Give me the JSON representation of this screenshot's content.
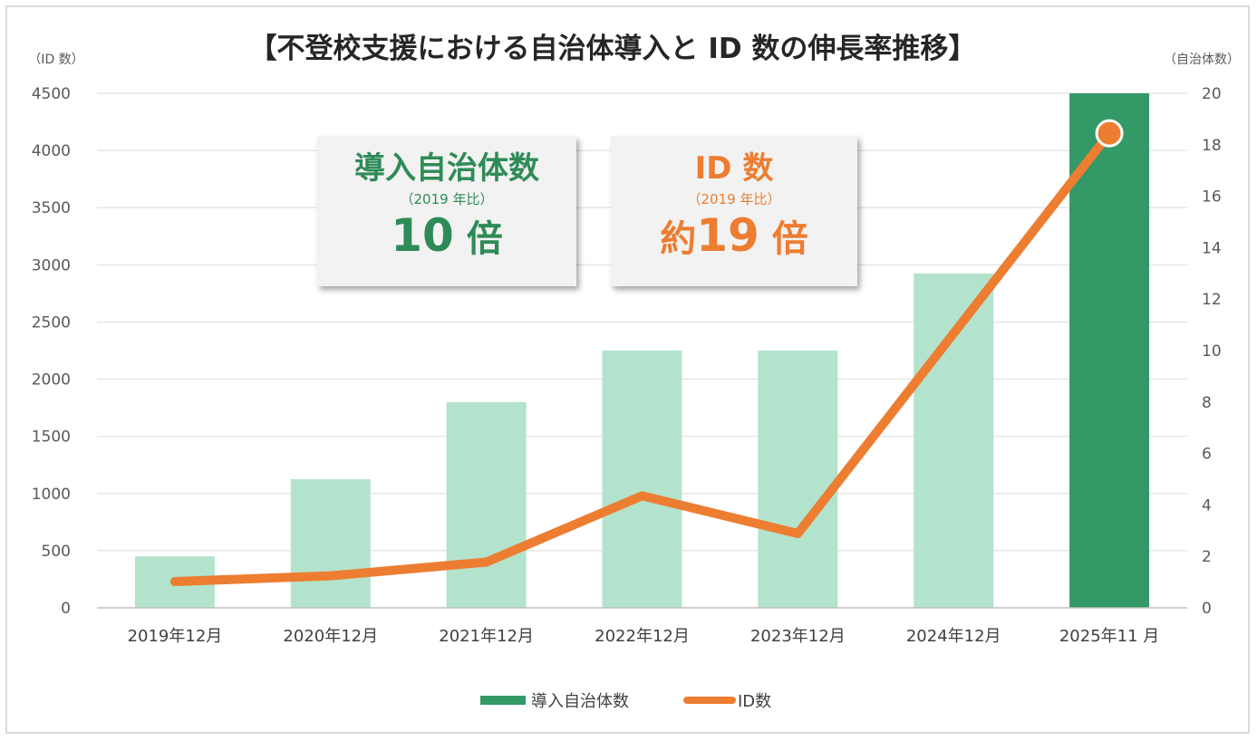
{
  "chart_data": {
    "type": "bar+line",
    "title": "【不登校支援における自治体導入と ID 数の伸長率推移】",
    "left_axis_unit": "（ID 数）",
    "right_axis_unit": "（自治体数）",
    "categories": [
      "2019年12月",
      "2020年12月",
      "2021年12月",
      "2022年12月",
      "2023年12月",
      "2024年12月",
      "2025年11 月"
    ],
    "left_ylim": [
      0,
      4500
    ],
    "left_ticks": [
      "4500",
      "4000",
      "3500",
      "3000",
      "2500",
      "2000",
      "1500",
      "1000",
      "500",
      "0"
    ],
    "right_ylim": [
      0,
      20
    ],
    "right_ticks": [
      "20",
      "18",
      "16",
      "14",
      "12",
      "10",
      "8",
      "6",
      "4",
      "2",
      "0"
    ],
    "grid": true,
    "series": [
      {
        "name": "導入自治体数",
        "type": "bar",
        "axis": "right",
        "values": [
          2,
          5,
          8,
          10,
          10,
          13,
          20
        ],
        "color": "#b3e3cc",
        "highlight_color": "#339966",
        "highlight_index": 6
      },
      {
        "name": "ID数",
        "type": "line",
        "axis": "left",
        "values": [
          230,
          280,
          400,
          980,
          650,
          2400,
          4150
        ],
        "color": "#ed7d31"
      }
    ],
    "legend_position": "bottom-center"
  },
  "callouts": {
    "municipalities": {
      "head": "導入自治体数",
      "sub": "（2019 年比）",
      "value": "10",
      "suffix": "倍",
      "prefix": ""
    },
    "ids": {
      "head": "ID 数",
      "sub": "（2019 年比）",
      "value": "19",
      "suffix": "倍",
      "prefix": "約"
    }
  },
  "colors": {
    "bar_light": "#b3e3cc",
    "bar_dark": "#339966",
    "line": "#ed7d31",
    "grid": "#e6e6e6"
  }
}
